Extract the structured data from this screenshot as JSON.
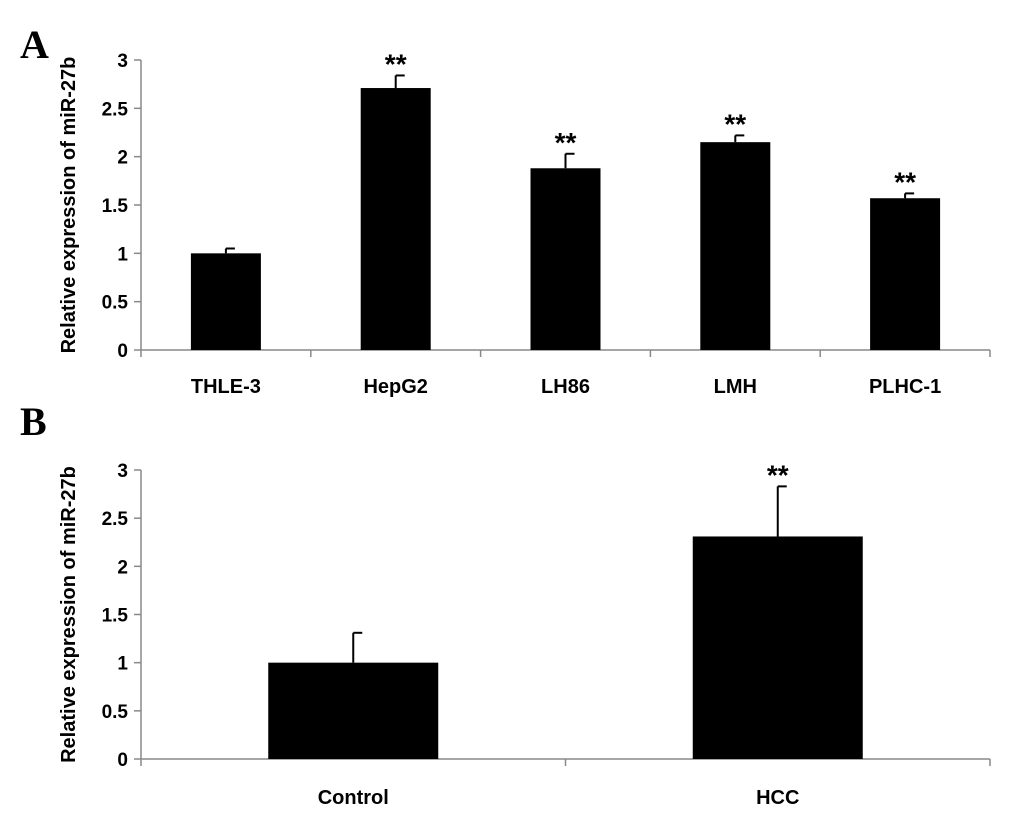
{
  "panels": [
    {
      "letter": "A",
      "chart_data": {
        "type": "bar",
        "title": "",
        "xlabel": "",
        "ylabel": "Relative expression of miR-27b",
        "categories": [
          "THLE-3",
          "HepG2",
          "LH86",
          "LMH",
          "PLHC-1"
        ],
        "values": [
          1.0,
          2.71,
          1.88,
          2.15,
          1.57
        ],
        "errors": [
          0.05,
          0.13,
          0.15,
          0.07,
          0.05
        ],
        "significance": [
          "",
          "**",
          "**",
          "**",
          "**"
        ],
        "ylim": [
          0,
          3
        ],
        "yticks": [
          "0",
          "0.5",
          "1",
          "1.5",
          "2",
          "2.5",
          "3"
        ],
        "grid": false,
        "bar_color": "#000000"
      }
    },
    {
      "letter": "B",
      "chart_data": {
        "type": "bar",
        "title": "",
        "xlabel": "",
        "ylabel": "Relative expression of miR-27b",
        "categories": [
          "Control",
          "HCC"
        ],
        "values": [
          1.0,
          2.31
        ],
        "errors": [
          0.31,
          0.52
        ],
        "significance": [
          "",
          "**"
        ],
        "ylim": [
          0,
          3
        ],
        "yticks": [
          "0",
          "0.5",
          "1",
          "1.5",
          "2",
          "2.5",
          "3"
        ],
        "grid": false,
        "bar_color": "#000000"
      }
    }
  ]
}
